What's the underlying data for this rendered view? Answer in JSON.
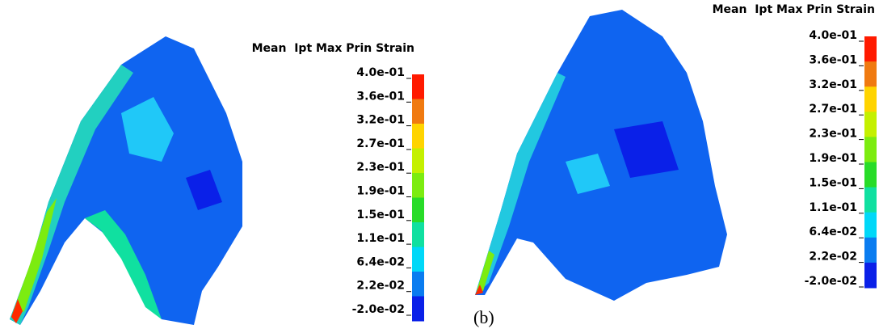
{
  "panels": [
    {
      "legend_title": "Mean  Ipt Max Prin Strain",
      "tick_labels": [
        "4.0e-01",
        "3.6e-01",
        "3.2e-01",
        "2.7e-01",
        "2.3e-01",
        "1.9e-01",
        "1.5e-01",
        "1.1e-01",
        "6.4e-02",
        "2.2e-02",
        "-2.0e-02"
      ],
      "colors": [
        "#ff1a00",
        "#f07a10",
        "#ffd400",
        "#c4f000",
        "#7cec10",
        "#28dc28",
        "#10e0a0",
        "#00d8f8",
        "#0a7cf0",
        "#0a20e8"
      ]
    },
    {
      "legend_title": "Mean  Ipt Max Prin Strain",
      "tick_labels": [
        "4.0e-01",
        "3.6e-01",
        "3.2e-01",
        "2.7e-01",
        "2.3e-01",
        "1.9e-01",
        "1.5e-01",
        "1.1e-01",
        "6.4e-02",
        "2.2e-02",
        "-2.0e-02"
      ],
      "colors": [
        "#ff1a00",
        "#f07a10",
        "#ffd400",
        "#c4f000",
        "#7cec10",
        "#28dc28",
        "#10e0a0",
        "#00d8f8",
        "#0a7cf0",
        "#0a20e8"
      ]
    }
  ],
  "caption": "(b)"
}
